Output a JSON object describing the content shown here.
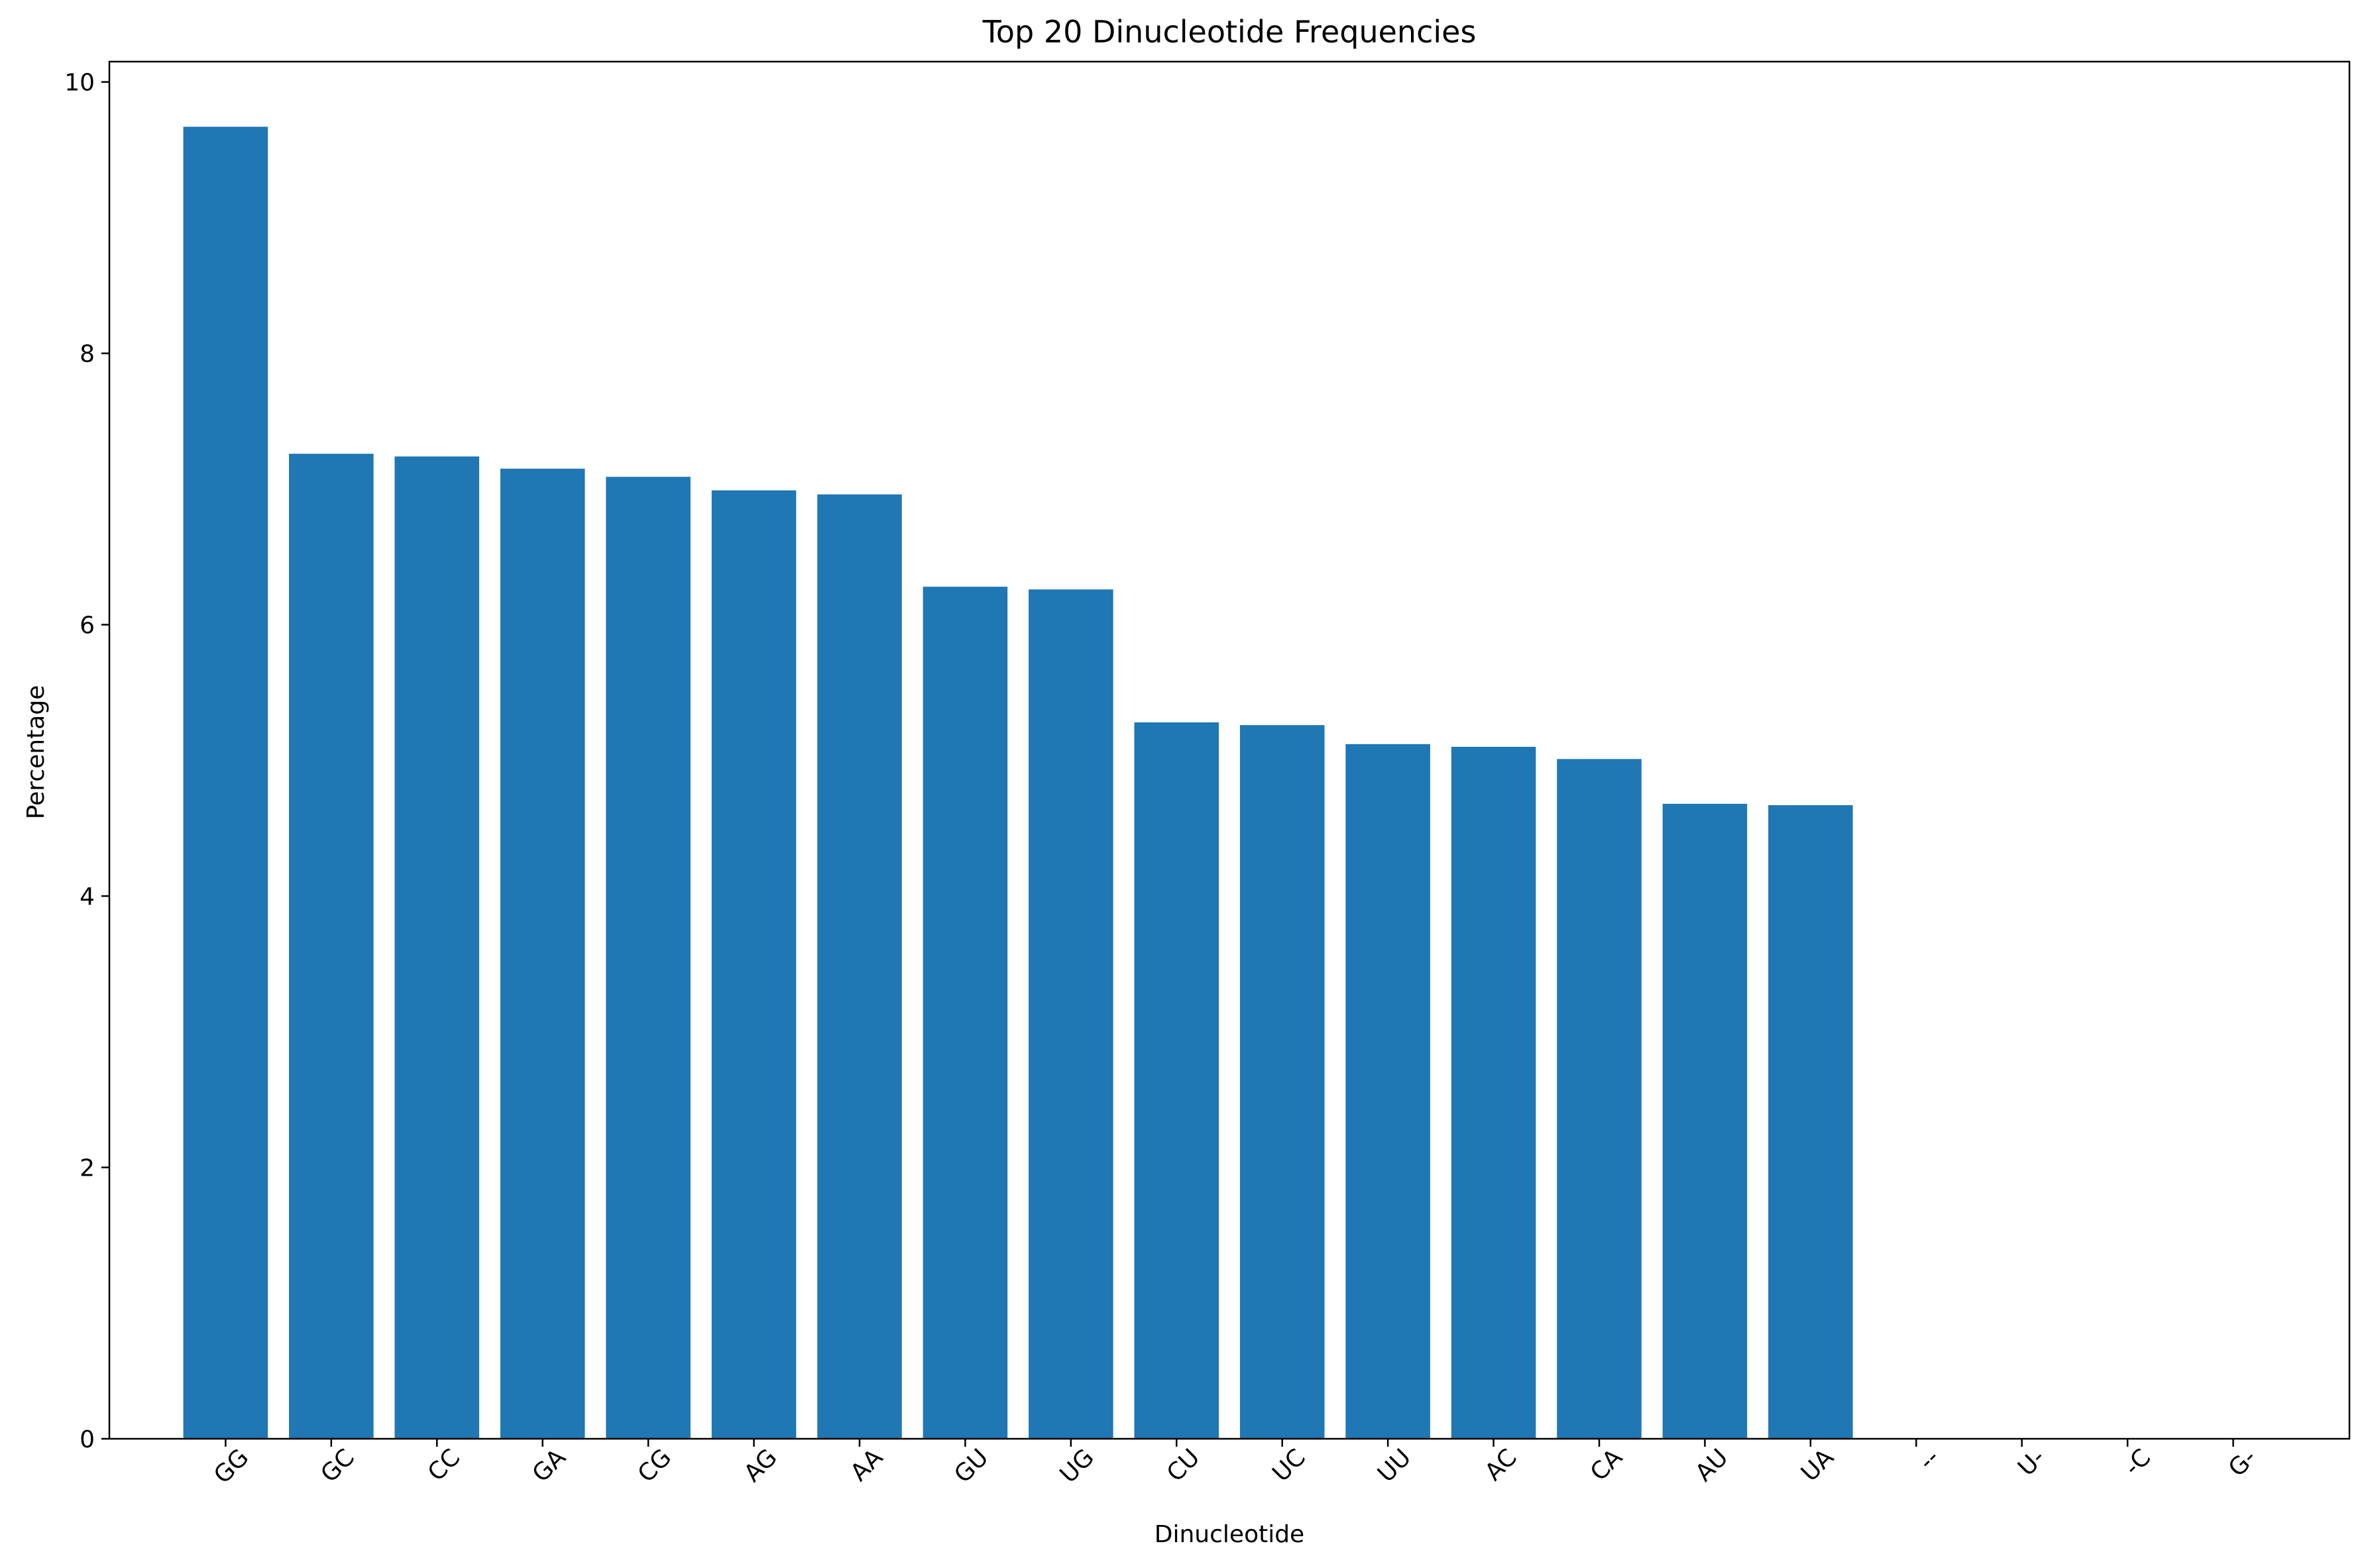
{
  "chart_data": {
    "type": "bar",
    "title": "Top 20 Dinucleotide Frequencies",
    "xlabel": "Dinucleotide",
    "ylabel": "Percentage",
    "categories": [
      "GG",
      "GC",
      "CC",
      "GA",
      "CG",
      "AG",
      "AA",
      "GU",
      "UG",
      "CU",
      "UC",
      "UU",
      "AC",
      "CA",
      "AU",
      "UA",
      "--",
      "U-",
      "-C",
      "G-"
    ],
    "values": [
      9.67,
      7.26,
      7.24,
      7.15,
      7.09,
      6.99,
      6.96,
      6.28,
      6.26,
      5.28,
      5.26,
      5.12,
      5.1,
      5.01,
      4.68,
      4.67,
      0.003,
      0.002,
      0.001,
      0.001
    ],
    "ylim": [
      0,
      10.15
    ],
    "yticks": [
      0,
      2,
      4,
      6,
      8,
      10
    ],
    "ytick_labels": [
      "0",
      "2",
      "4",
      "6",
      "8",
      "10"
    ],
    "xtick_rotation": 45,
    "grid": false,
    "bar_color": "#1f77b4"
  }
}
